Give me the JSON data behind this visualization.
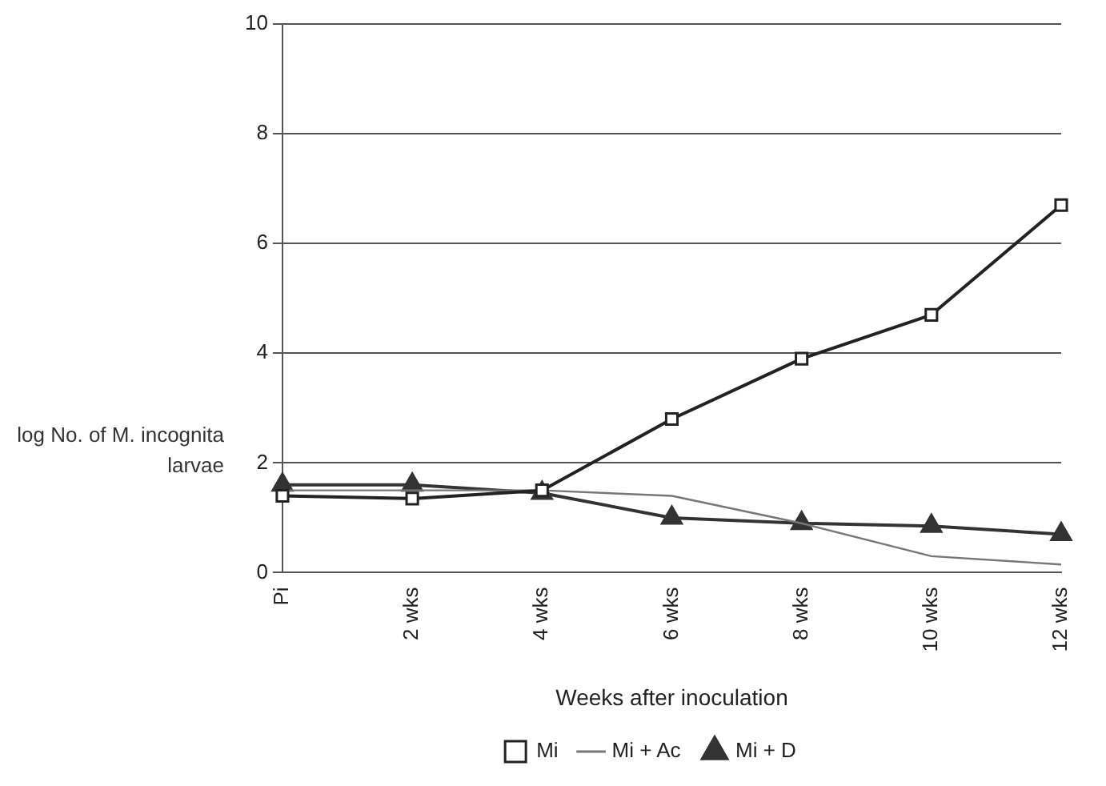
{
  "chart_data": {
    "type": "line",
    "xlabel": "Weeks after inoculation",
    "ylabel": "log No. of M. incognita larvae",
    "categories": [
      "Pi",
      "2 wks",
      "4 wks",
      "6 wks",
      "8 wks",
      "10 wks",
      "12 wks"
    ],
    "series": [
      {
        "name": "Mi",
        "color": "#222222",
        "marker": "square",
        "values": [
          1.4,
          1.35,
          1.5,
          2.8,
          3.9,
          4.7,
          6.7
        ]
      },
      {
        "name": "Mi + Ac",
        "color": "#777777",
        "marker": "none",
        "values": [
          1.5,
          1.5,
          1.5,
          1.4,
          0.9,
          0.3,
          0.15
        ]
      },
      {
        "name": "Mi + D",
        "color": "#333333",
        "marker": "triangle",
        "values": [
          1.6,
          1.6,
          1.45,
          1.0,
          0.9,
          0.85,
          0.7
        ]
      }
    ],
    "ylim": [
      0,
      10
    ],
    "yticks": [
      0,
      2,
      4,
      6,
      8,
      10
    ],
    "grid": "y",
    "legend": "bottom",
    "line_style": "solid"
  }
}
